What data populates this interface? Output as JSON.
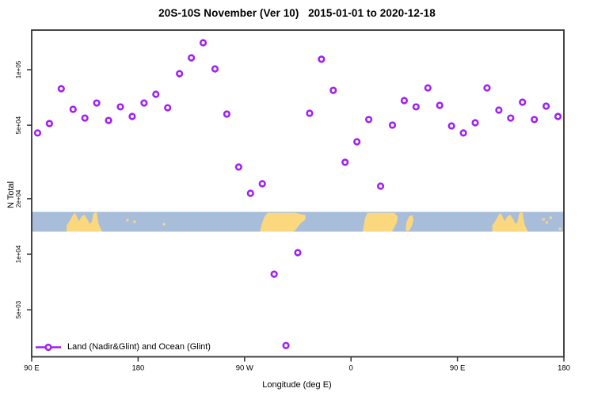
{
  "chart_data": {
    "type": "scatter",
    "title": "20S-10S November (Ver 10)   2015-01-01 to 2020-12-18",
    "xlabel": "Longitude (deg E)",
    "ylabel": "N Total",
    "grid": false,
    "x_axis": {
      "min": 90,
      "max": 540,
      "note": "longitude wrapping eastward from 90E through 180, 90W, 0, 90E to 180",
      "ticks": [
        {
          "pos": 90,
          "label": "90 E"
        },
        {
          "pos": 180,
          "label": "180"
        },
        {
          "pos": 270,
          "label": "90 W"
        },
        {
          "pos": 360,
          "label": "0"
        },
        {
          "pos": 450,
          "label": "90 E"
        },
        {
          "pos": 540,
          "label": "180"
        }
      ]
    },
    "y_axis": {
      "scale": "log",
      "min": 2800,
      "max": 164000,
      "ticks": [
        {
          "value": 100000,
          "label": "1e+05"
        },
        {
          "value": 50000,
          "label": "5e+04"
        },
        {
          "value": 20000,
          "label": "2e+04"
        },
        {
          "value": 10000,
          "label": "1e+04"
        },
        {
          "value": 5000,
          "label": "5e+03"
        }
      ]
    },
    "legend": {
      "position": "bottom-left",
      "entries": [
        {
          "label": "Land (Nadir&Glint) and Ocean (Glint)",
          "color": "#A020F0",
          "marker": "open-circle-on-line"
        }
      ]
    },
    "series": [
      {
        "name": "Land (Nadir&Glint) and Ocean (Glint)",
        "color": "#A020F0",
        "marker": "open-circle",
        "points": [
          [
            95,
            45400
          ],
          [
            105,
            51100
          ],
          [
            115,
            78900
          ],
          [
            125,
            61000
          ],
          [
            135,
            54700
          ],
          [
            145,
            66000
          ],
          [
            155,
            53100
          ],
          [
            165,
            62900
          ],
          [
            175,
            55800
          ],
          [
            185,
            66000
          ],
          [
            195,
            73600
          ],
          [
            205,
            62200
          ],
          [
            215,
            95200
          ],
          [
            225,
            116000
          ],
          [
            235,
            140000
          ],
          [
            245,
            101000
          ],
          [
            255,
            57500
          ],
          [
            265,
            29700
          ],
          [
            275,
            21400
          ],
          [
            285,
            24100
          ],
          [
            295,
            7800
          ],
          [
            305,
            3200
          ],
          [
            315,
            10200
          ],
          [
            325,
            58100
          ],
          [
            335,
            114000
          ],
          [
            345,
            77300
          ],
          [
            355,
            31500
          ],
          [
            365,
            40700
          ],
          [
            375,
            53700
          ],
          [
            385,
            23400
          ],
          [
            395,
            50100
          ],
          [
            405,
            68000
          ],
          [
            415,
            62900
          ],
          [
            425,
            79700
          ],
          [
            435,
            64100
          ],
          [
            445,
            49600
          ],
          [
            455,
            45400
          ],
          [
            465,
            51600
          ],
          [
            475,
            79700
          ],
          [
            485,
            60400
          ],
          [
            495,
            54700
          ],
          [
            505,
            66700
          ],
          [
            515,
            53700
          ],
          [
            525,
            63500
          ],
          [
            535,
            55800
          ]
        ]
      }
    ],
    "map_band": {
      "description": "20S-10S latitude strip world map drawn across the plot",
      "ocean_color": "#A8BDD9",
      "land_color": "#FBD87E",
      "land_patches": {
        "australia_offsets_deg": [
          0,
          360
        ],
        "australia": [
          [
            119.5,
            1.0
          ],
          [
            119.5,
            0.68
          ],
          [
            121.5,
            0.52
          ],
          [
            124.5,
            0.2
          ],
          [
            126.5,
            0.05
          ],
          [
            128,
            0.22
          ],
          [
            130,
            0.48
          ],
          [
            132,
            0.24
          ],
          [
            134.5,
            0.14
          ],
          [
            137,
            0.36
          ],
          [
            139,
            0.6
          ],
          [
            140.8,
            0.52
          ],
          [
            142,
            0.12
          ],
          [
            143.5,
            0.03
          ],
          [
            145,
            0.03
          ],
          [
            145.8,
            0.36
          ],
          [
            147,
            0.68
          ],
          [
            148.3,
            0.84
          ],
          [
            149.6,
            1.0
          ]
        ],
        "south_america": [
          [
            283,
            1.0
          ],
          [
            284.5,
            0.64
          ],
          [
            286.5,
            0.28
          ],
          [
            289.5,
            0.05
          ],
          [
            313.5,
            0.05
          ],
          [
            317.5,
            0.12
          ],
          [
            321.5,
            0.16
          ],
          [
            321.5,
            0.4
          ],
          [
            318.5,
            0.52
          ],
          [
            315.5,
            0.72
          ],
          [
            313,
            0.92
          ],
          [
            311,
            1.0
          ]
        ],
        "africa": [
          [
            370,
            1.0
          ],
          [
            370.8,
            0.66
          ],
          [
            372,
            0.3
          ],
          [
            374,
            0.05
          ],
          [
            396.8,
            0.05
          ],
          [
            399.5,
            0.24
          ],
          [
            398.8,
            0.52
          ],
          [
            396.8,
            0.76
          ],
          [
            394.8,
            1.0
          ]
        ],
        "madagascar": [
          [
            406.2,
            0.92
          ],
          [
            406.9,
            0.52
          ],
          [
            408.9,
            0.24
          ],
          [
            411.6,
            0.16
          ],
          [
            412.9,
            0.36
          ],
          [
            411.6,
            0.68
          ],
          [
            409.5,
            0.92
          ],
          [
            407.5,
            0.98
          ]
        ],
        "island_specks": [
          [
            171,
            0.42
          ],
          [
            177,
            0.5
          ],
          [
            202,
            0.62
          ],
          [
            522.8,
            0.38
          ],
          [
            525.5,
            0.54
          ],
          [
            528.8,
            0.3
          ],
          [
            536.8,
            0.86
          ]
        ]
      }
    }
  }
}
